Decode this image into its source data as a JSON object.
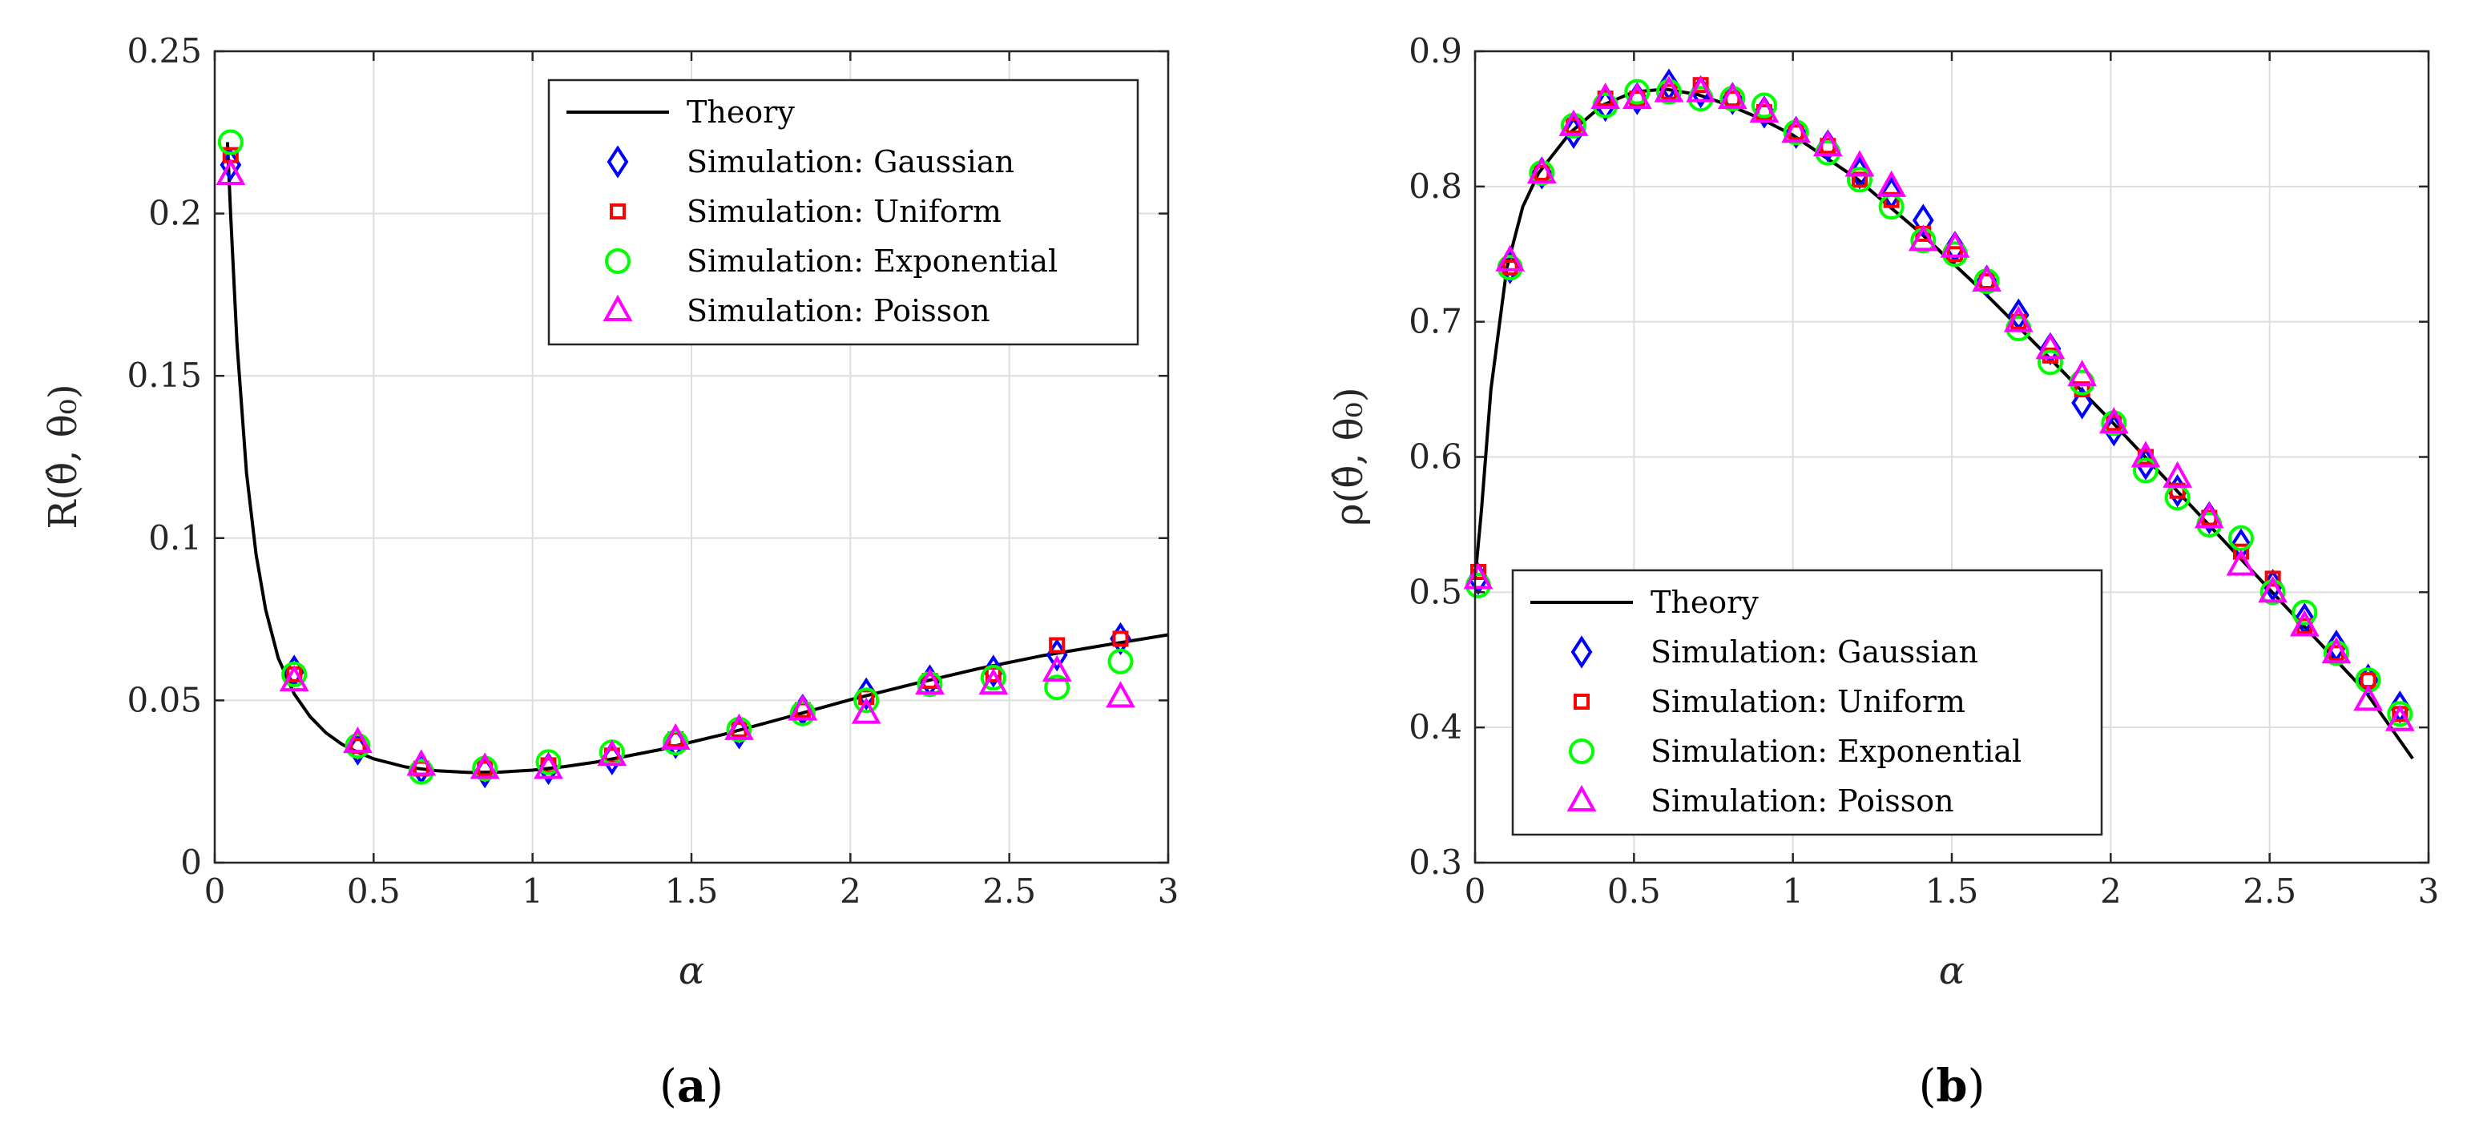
{
  "chart_data": [
    {
      "type": "line",
      "panel_label": "a",
      "xlabel": "α",
      "ylabel": "R(θ̂, θ₀)",
      "xlim": [
        0,
        3
      ],
      "ylim": [
        0,
        0.25
      ],
      "x_ticks": [
        "0",
        "0.5",
        "1",
        "1.5",
        "2",
        "2.5",
        "3"
      ],
      "y_ticks": [
        "0",
        "0.05",
        "0.1",
        "0.15",
        "0.2",
        "0.25"
      ],
      "grid": true,
      "legend_position": "top-right",
      "theory": {
        "name": "Theory",
        "x": [
          0.04,
          0.05,
          0.07,
          0.1,
          0.13,
          0.16,
          0.2,
          0.25,
          0.3,
          0.35,
          0.4,
          0.45,
          0.5,
          0.6,
          0.7,
          0.8,
          0.9,
          1.0,
          1.1,
          1.2,
          1.4,
          1.6,
          1.8,
          2.0,
          2.2,
          2.4,
          2.6,
          2.8,
          3.0
        ],
        "y": [
          0.222,
          0.2,
          0.16,
          0.12,
          0.095,
          0.078,
          0.063,
          0.052,
          0.045,
          0.04,
          0.0365,
          0.034,
          0.032,
          0.0295,
          0.0283,
          0.0278,
          0.0279,
          0.0285,
          0.0296,
          0.031,
          0.0348,
          0.0395,
          0.0448,
          0.0502,
          0.0551,
          0.0597,
          0.0637,
          0.067,
          0.0702
        ]
      },
      "series": [
        {
          "name": "Simulation: Gaussian",
          "marker": "diamond",
          "color": "#0000ff",
          "x": [
            0.05,
            0.25,
            0.45,
            0.65,
            0.85,
            1.05,
            1.25,
            1.45,
            1.65,
            1.85,
            2.05,
            2.25,
            2.45,
            2.65,
            2.85
          ],
          "y": [
            0.215,
            0.059,
            0.035,
            0.029,
            0.028,
            0.029,
            0.032,
            0.037,
            0.04,
            0.047,
            0.052,
            0.056,
            0.059,
            0.064,
            0.069
          ]
        },
        {
          "name": "Simulation: Uniform",
          "marker": "square",
          "color": "#ff0000",
          "x": [
            0.05,
            0.25,
            0.45,
            0.65,
            0.85,
            1.05,
            1.25,
            1.45,
            1.65,
            1.85,
            2.05,
            2.25,
            2.45,
            2.65,
            2.85
          ],
          "y": [
            0.218,
            0.058,
            0.036,
            0.029,
            0.029,
            0.03,
            0.033,
            0.038,
            0.041,
            0.047,
            0.051,
            0.056,
            0.058,
            0.067,
            0.069
          ]
        },
        {
          "name": "Simulation: Exponential",
          "marker": "circle",
          "color": "#00ff00",
          "x": [
            0.05,
            0.25,
            0.45,
            0.65,
            0.85,
            1.05,
            1.25,
            1.45,
            1.65,
            1.85,
            2.05,
            2.25,
            2.45,
            2.65,
            2.85
          ],
          "y": [
            0.222,
            0.058,
            0.036,
            0.028,
            0.029,
            0.031,
            0.034,
            0.037,
            0.041,
            0.046,
            0.05,
            0.055,
            0.057,
            0.054,
            0.062
          ]
        },
        {
          "name": "Simulation: Poisson",
          "marker": "triangle",
          "color": "#ff00ff",
          "x": [
            0.05,
            0.25,
            0.45,
            0.65,
            0.85,
            1.05,
            1.25,
            1.45,
            1.65,
            1.85,
            2.05,
            2.25,
            2.45,
            2.65,
            2.85
          ],
          "y": [
            0.212,
            0.056,
            0.037,
            0.03,
            0.029,
            0.029,
            0.033,
            0.038,
            0.041,
            0.047,
            0.046,
            0.055,
            0.055,
            0.059,
            0.051
          ]
        }
      ]
    },
    {
      "type": "line",
      "panel_label": "b",
      "xlabel": "α",
      "ylabel": "ρ(θ̂, θ₀)",
      "xlim": [
        0,
        3
      ],
      "ylim": [
        0.3,
        0.9
      ],
      "x_ticks": [
        "0",
        "0.5",
        "1",
        "1.5",
        "2",
        "2.5",
        "3"
      ],
      "y_ticks": [
        "0.3",
        "0.4",
        "0.5",
        "0.6",
        "0.7",
        "0.8",
        "0.9"
      ],
      "grid": true,
      "legend_position": "bottom-left",
      "theory": {
        "name": "Theory",
        "x": [
          0.0,
          0.02,
          0.05,
          0.1,
          0.15,
          0.2,
          0.3,
          0.4,
          0.5,
          0.6,
          0.7,
          0.8,
          0.9,
          1.0,
          1.2,
          1.4,
          1.6,
          1.8,
          2.0,
          2.2,
          2.4,
          2.6,
          2.8,
          2.95
        ],
        "y": [
          0.51,
          0.56,
          0.65,
          0.74,
          0.785,
          0.81,
          0.84,
          0.86,
          0.87,
          0.872,
          0.868,
          0.86,
          0.85,
          0.838,
          0.806,
          0.766,
          0.722,
          0.675,
          0.627,
          0.577,
          0.527,
          0.477,
          0.427,
          0.377
        ]
      },
      "series": [
        {
          "name": "Simulation: Gaussian",
          "marker": "diamond",
          "color": "#0000ff",
          "x": [
            0.01,
            0.11,
            0.21,
            0.31,
            0.41,
            0.51,
            0.61,
            0.71,
            0.81,
            0.91,
            1.01,
            1.11,
            1.21,
            1.31,
            1.41,
            1.51,
            1.61,
            1.71,
            1.81,
            1.91,
            2.01,
            2.11,
            2.21,
            2.31,
            2.41,
            2.51,
            2.61,
            2.71,
            2.81,
            2.91
          ],
          "y": [
            0.51,
            0.74,
            0.81,
            0.84,
            0.86,
            0.865,
            0.875,
            0.87,
            0.865,
            0.855,
            0.84,
            0.83,
            0.81,
            0.795,
            0.775,
            0.755,
            0.73,
            0.705,
            0.68,
            0.64,
            0.62,
            0.595,
            0.575,
            0.555,
            0.535,
            0.505,
            0.48,
            0.46,
            0.435,
            0.415
          ]
        },
        {
          "name": "Simulation: Uniform",
          "marker": "square",
          "color": "#ff0000",
          "x": [
            0.01,
            0.11,
            0.21,
            0.31,
            0.41,
            0.51,
            0.61,
            0.71,
            0.81,
            0.91,
            1.01,
            1.11,
            1.21,
            1.31,
            1.41,
            1.51,
            1.61,
            1.71,
            1.81,
            1.91,
            2.01,
            2.11,
            2.21,
            2.31,
            2.41,
            2.51,
            2.61,
            2.71,
            2.81,
            2.91
          ],
          "y": [
            0.515,
            0.74,
            0.81,
            0.845,
            0.865,
            0.865,
            0.87,
            0.875,
            0.865,
            0.855,
            0.84,
            0.83,
            0.805,
            0.79,
            0.765,
            0.75,
            0.73,
            0.7,
            0.675,
            0.65,
            0.625,
            0.6,
            0.575,
            0.555,
            0.53,
            0.51,
            0.475,
            0.455,
            0.435,
            0.41
          ]
        },
        {
          "name": "Simulation: Exponential",
          "marker": "circle",
          "color": "#00ff00",
          "x": [
            0.01,
            0.11,
            0.21,
            0.31,
            0.41,
            0.51,
            0.61,
            0.71,
            0.81,
            0.91,
            1.01,
            1.11,
            1.21,
            1.31,
            1.41,
            1.51,
            1.61,
            1.71,
            1.81,
            1.91,
            2.01,
            2.11,
            2.21,
            2.31,
            2.41,
            2.51,
            2.61,
            2.71,
            2.81,
            2.91
          ],
          "y": [
            0.505,
            0.74,
            0.81,
            0.845,
            0.86,
            0.87,
            0.87,
            0.865,
            0.865,
            0.86,
            0.84,
            0.825,
            0.805,
            0.785,
            0.76,
            0.75,
            0.73,
            0.695,
            0.67,
            0.655,
            0.625,
            0.59,
            0.57,
            0.55,
            0.54,
            0.5,
            0.485,
            0.455,
            0.435,
            0.41
          ]
        },
        {
          "name": "Simulation: Poisson",
          "marker": "triangle",
          "color": "#ff00ff",
          "x": [
            0.01,
            0.11,
            0.21,
            0.31,
            0.41,
            0.51,
            0.61,
            0.71,
            0.81,
            0.91,
            1.01,
            1.11,
            1.21,
            1.31,
            1.41,
            1.51,
            1.61,
            1.71,
            1.81,
            1.91,
            2.01,
            2.11,
            2.21,
            2.31,
            2.41,
            2.51,
            2.61,
            2.71,
            2.81,
            2.91
          ],
          "y": [
            0.51,
            0.745,
            0.81,
            0.845,
            0.865,
            0.865,
            0.87,
            0.87,
            0.865,
            0.855,
            0.84,
            0.83,
            0.815,
            0.8,
            0.76,
            0.755,
            0.73,
            0.7,
            0.68,
            0.66,
            0.625,
            0.6,
            0.585,
            0.555,
            0.52,
            0.5,
            0.475,
            0.455,
            0.42,
            0.405
          ]
        }
      ]
    }
  ]
}
